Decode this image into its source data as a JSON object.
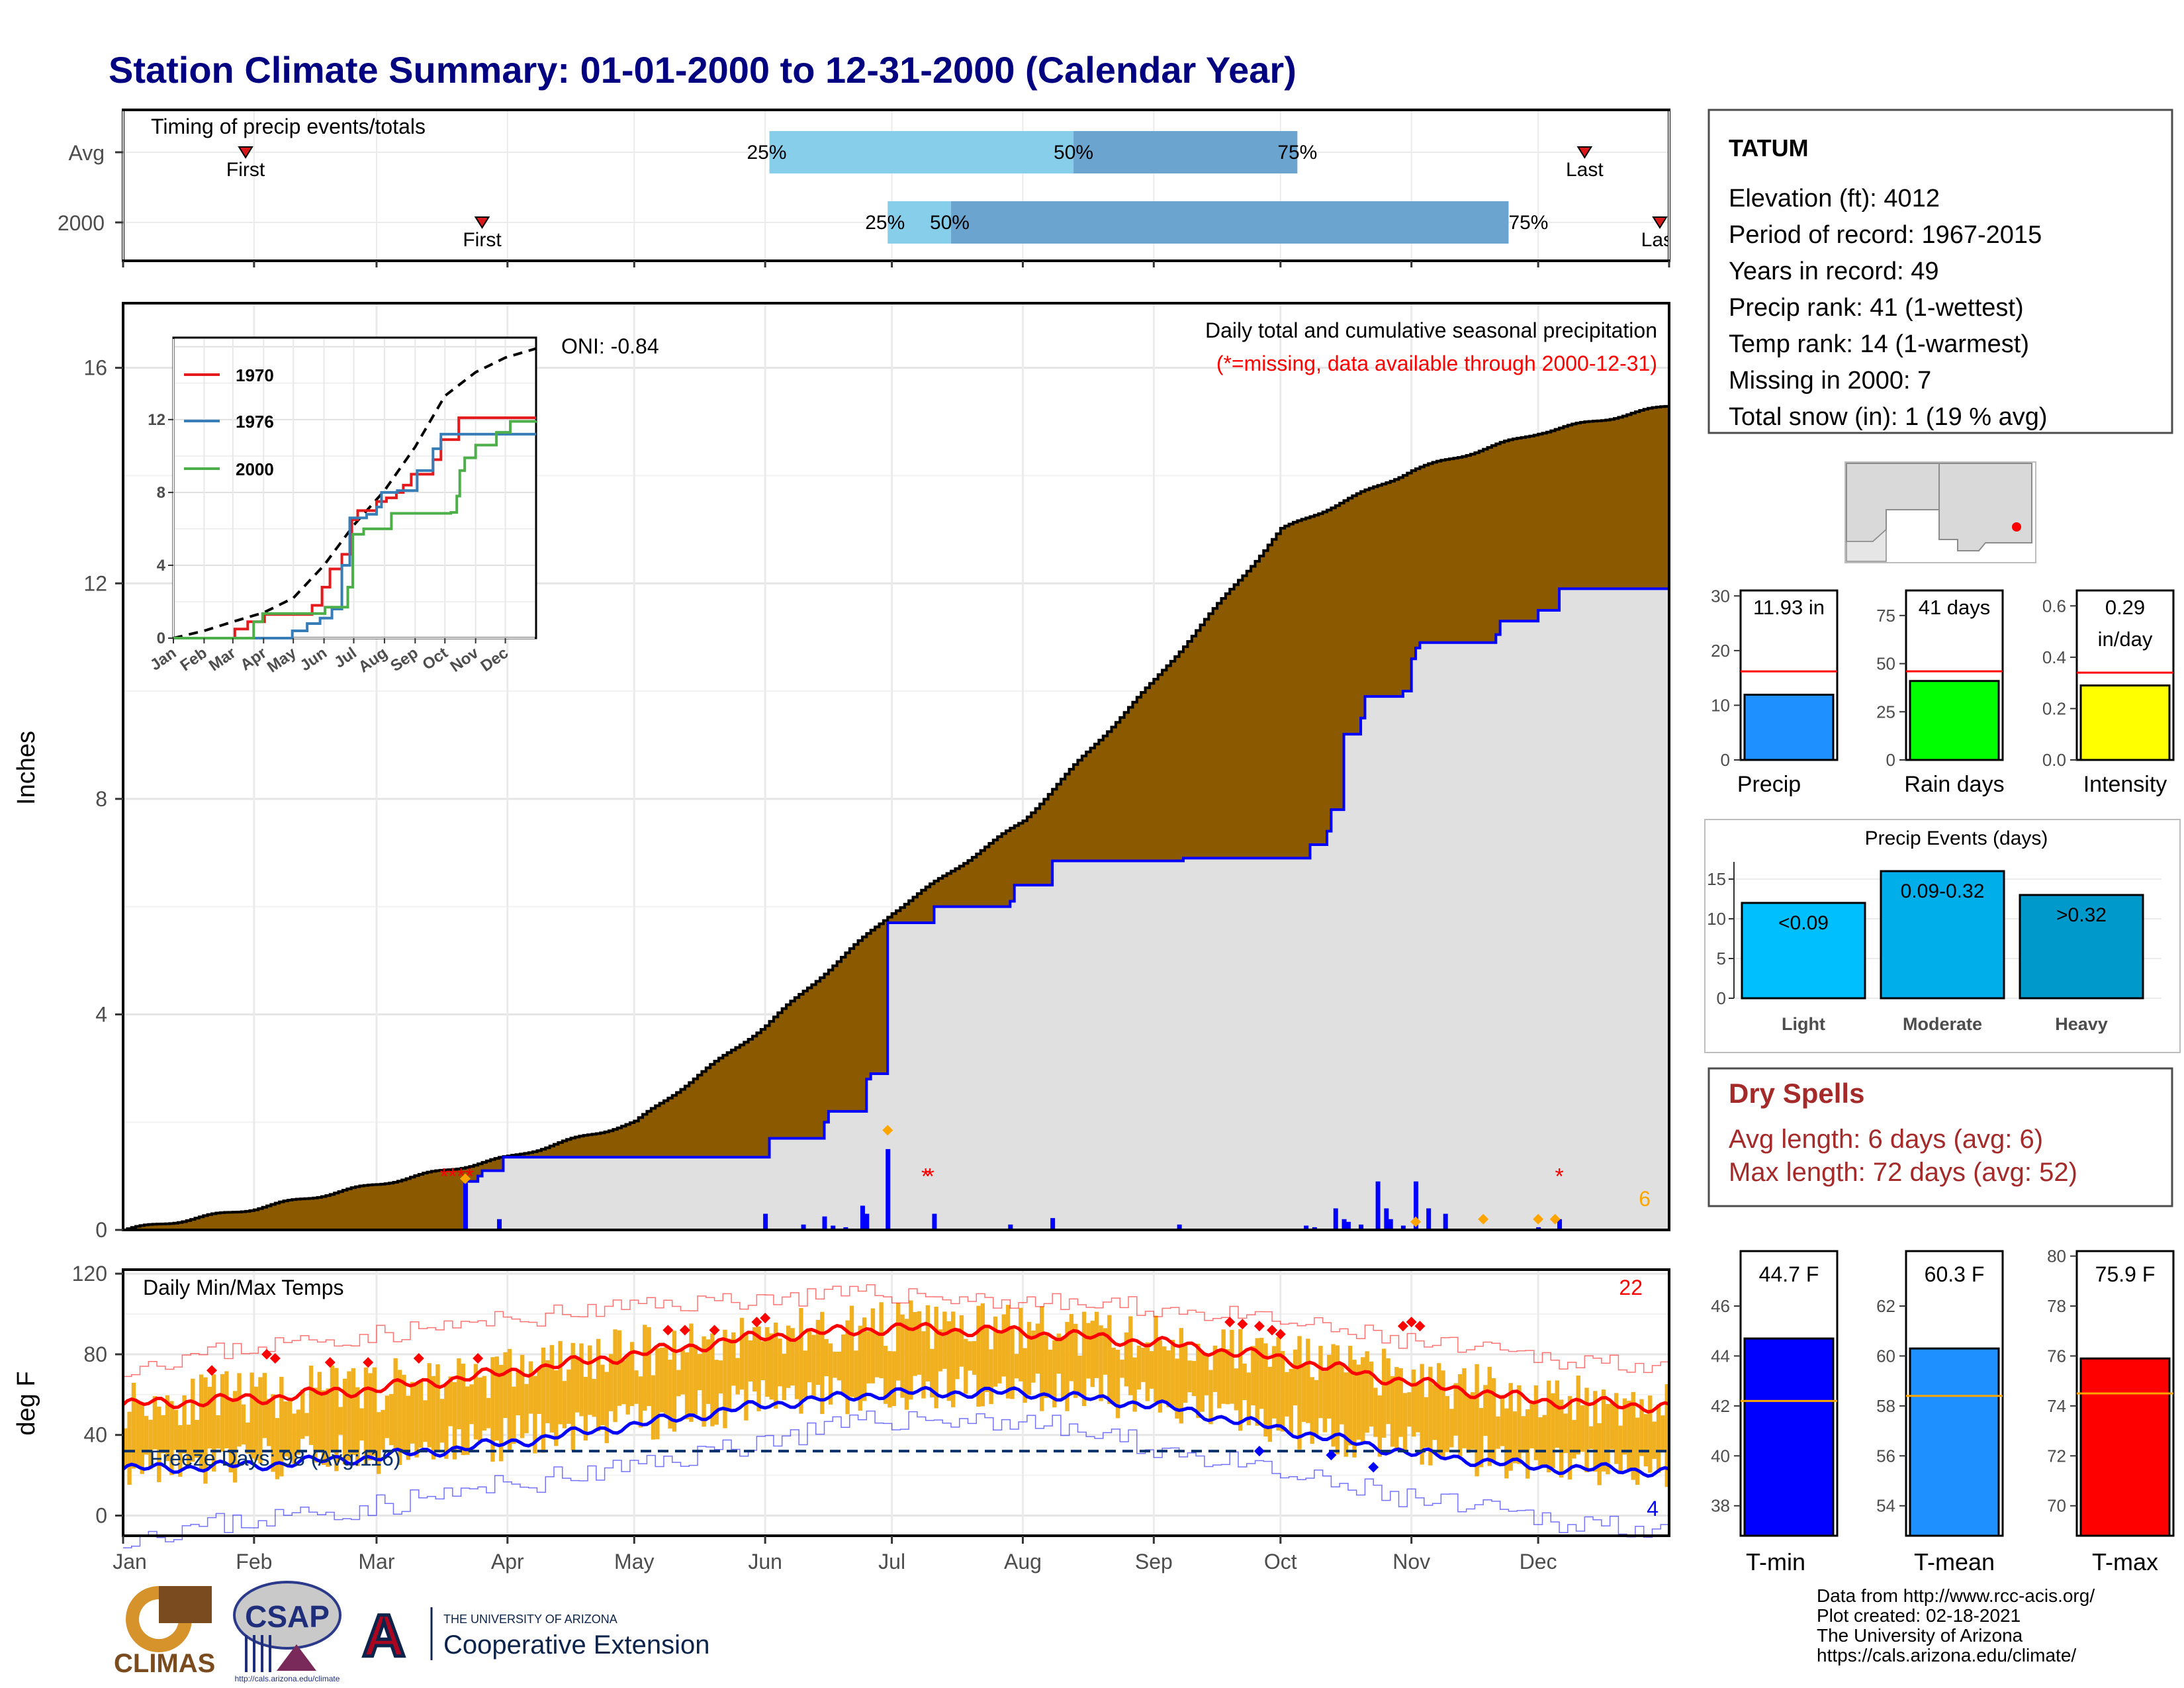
{
  "title": "Station Climate Summary: 01-01-2000 to 12-31-2000 (Calendar Year)",
  "colors": {
    "title": "#000080",
    "precip_fill": "#8B5A00",
    "avg_fill": "#e0e0e0",
    "daily_bar": "#0000ff",
    "timing_light": "#87ceeb",
    "timing_dark": "#6ba5cf",
    "tmax": "#ff0000",
    "tmin": "#0000ff",
    "temp_bar": "#f0b020",
    "dry": "#a52a2a",
    "missing": "#ff0000",
    "extreme": "#ffa500"
  },
  "months": [
    "Jan",
    "Feb",
    "Mar",
    "Apr",
    "May",
    "Jun",
    "Jul",
    "Aug",
    "Sep",
    "Oct",
    "Nov",
    "Dec"
  ],
  "timing": {
    "title": "Timing of precip events/totals",
    "rows": [
      {
        "label": "Avg",
        "first_doy": 29,
        "first": "First",
        "p25": 153,
        "p50": 225,
        "p75": 278,
        "last_doy": 346,
        "last": "Last",
        "p25_text": "25%",
        "p50_text": "50%",
        "p75_text": "75%"
      },
      {
        "label": "2000",
        "first_doy": 85,
        "first": "First",
        "p25": 181,
        "p50": 196,
        "p75": 328,
        "last_doy": 366,
        "last": "Last",
        "p25_text": "25%",
        "p50_text": "50%",
        "p75_text": "75%"
      }
    ]
  },
  "precip_panel": {
    "ylabel": "Inches",
    "yticks": [
      0,
      4,
      8,
      12,
      16
    ],
    "ylim": [
      0,
      17.2
    ],
    "title": "Daily total and cumulative seasonal precipitation",
    "missing_note": "(*=missing, data available through 2000-12-31)",
    "oni": "ONI: -0.84",
    "corner_count": "6",
    "inset": {
      "yticks": [
        0,
        4,
        8,
        12
      ],
      "xticks": [
        "Jan",
        "Feb",
        "Mar",
        "Apr",
        "May",
        "Jun",
        "Jul",
        "Aug",
        "Sep",
        "Oct",
        "Nov",
        "Dec"
      ],
      "legend": [
        "1970",
        "1976",
        "2000"
      ]
    }
  },
  "chart_data": [
    {
      "type": "area",
      "title": "Daily total and cumulative seasonal precipitation",
      "ylabel": "Inches",
      "x_unit": "day of year",
      "series": [
        {
          "name": "Avg cumulative precip",
          "points": [
            [
              0,
              0
            ],
            [
              31,
              0.4
            ],
            [
              60,
              0.85
            ],
            [
              91,
              1.35
            ],
            [
              121,
              2.0
            ],
            [
              152,
              3.8
            ],
            [
              182,
              5.9
            ],
            [
              213,
              7.6
            ],
            [
              244,
              10.2
            ],
            [
              274,
              13.0
            ],
            [
              305,
              14.1
            ],
            [
              335,
              14.8
            ],
            [
              366,
              15.3
            ]
          ]
        },
        {
          "name": "2000 cumulative precip",
          "points": [
            [
              0,
              0
            ],
            [
              80,
              0
            ],
            [
              81,
              0.9
            ],
            [
              84,
              1.0
            ],
            [
              85,
              1.1
            ],
            [
              90,
              1.35
            ],
            [
              152,
              1.35
            ],
            [
              153,
              1.7
            ],
            [
              165,
              1.7
            ],
            [
              166,
              2.0
            ],
            [
              167,
              2.2
            ],
            [
              175,
              2.2
            ],
            [
              176,
              2.8
            ],
            [
              177,
              2.9
            ],
            [
              180,
              2.9
            ],
            [
              181,
              5.7
            ],
            [
              191,
              5.7
            ],
            [
              192,
              6.0
            ],
            [
              210,
              6.1
            ],
            [
              211,
              6.4
            ],
            [
              219,
              6.4
            ],
            [
              220,
              6.85
            ],
            [
              250,
              6.85
            ],
            [
              251,
              6.9
            ],
            [
              280,
              6.9
            ],
            [
              281,
              7.15
            ],
            [
              285,
              7.4
            ],
            [
              286,
              7.8
            ],
            [
              289,
              9.2
            ],
            [
              293,
              9.5
            ],
            [
              294,
              9.9
            ],
            [
              303,
              10.0
            ],
            [
              305,
              10.6
            ],
            [
              306,
              10.8
            ],
            [
              307,
              10.9
            ],
            [
              325,
              11.05
            ],
            [
              326,
              11.3
            ],
            [
              335,
              11.5
            ],
            [
              340,
              11.9
            ],
            [
              366,
              11.93
            ]
          ]
        }
      ],
      "daily_bars": [
        [
          81,
          0.87
        ],
        [
          89,
          0.2
        ],
        [
          152,
          0.3
        ],
        [
          161,
          0.1
        ],
        [
          166,
          0.25
        ],
        [
          168,
          0.08
        ],
        [
          171,
          0.05
        ],
        [
          175,
          0.45
        ],
        [
          176,
          0.3
        ],
        [
          181,
          1.5
        ],
        [
          192,
          0.3
        ],
        [
          210,
          0.1
        ],
        [
          220,
          0.22
        ],
        [
          250,
          0.1
        ],
        [
          280,
          0.08
        ],
        [
          282,
          0.05
        ],
        [
          287,
          0.4
        ],
        [
          289,
          0.2
        ],
        [
          290,
          0.15
        ],
        [
          293,
          0.1
        ],
        [
          297,
          0.9
        ],
        [
          299,
          0.4
        ],
        [
          300,
          0.2
        ],
        [
          303,
          0.08
        ],
        [
          306,
          0.9
        ],
        [
          309,
          0.4
        ],
        [
          313,
          0.3
        ],
        [
          335,
          0.05
        ],
        [
          340,
          0.2
        ]
      ]
    },
    {
      "type": "line",
      "title": "Daily Min/Max Temps",
      "ylabel": "deg F",
      "yticks": [
        0,
        40,
        80,
        120
      ],
      "ylim": [
        -10,
        122
      ],
      "series": [
        {
          "name": "Normal Tmax",
          "points": [
            [
              0,
              55
            ],
            [
              31,
              58
            ],
            [
              60,
              63
            ],
            [
              91,
              71
            ],
            [
              121,
              80
            ],
            [
              152,
              89
            ],
            [
              182,
              93
            ],
            [
              213,
              91
            ],
            [
              244,
              86
            ],
            [
              274,
              78
            ],
            [
              305,
              66
            ],
            [
              335,
              57
            ],
            [
              366,
              54
            ]
          ]
        },
        {
          "name": "Normal Tmin",
          "points": [
            [
              0,
              23
            ],
            [
              31,
              25
            ],
            [
              60,
              29
            ],
            [
              91,
              36
            ],
            [
              121,
              45
            ],
            [
              152,
              55
            ],
            [
              182,
              61
            ],
            [
              213,
              61
            ],
            [
              244,
              55
            ],
            [
              274,
              43
            ],
            [
              305,
              31
            ],
            [
              335,
              24
            ],
            [
              366,
              22
            ]
          ]
        },
        {
          "name": "Record Tmax",
          "points": [
            [
              0,
              74
            ],
            [
              31,
              84
            ],
            [
              60,
              90
            ],
            [
              91,
              97
            ],
            [
              121,
              104
            ],
            [
              152,
              108
            ],
            [
              182,
              110
            ],
            [
              213,
              106
            ],
            [
              244,
              103
            ],
            [
              274,
              96
            ],
            [
              305,
              86
            ],
            [
              335,
              78
            ],
            [
              366,
              75
            ]
          ]
        },
        {
          "name": "Record Tmin",
          "points": [
            [
              0,
              -10
            ],
            [
              31,
              -2
            ],
            [
              60,
              5
            ],
            [
              91,
              15
            ],
            [
              121,
              24
            ],
            [
              152,
              38
            ],
            [
              182,
              48
            ],
            [
              213,
              47
            ],
            [
              244,
              34
            ],
            [
              274,
              20
            ],
            [
              305,
              8
            ],
            [
              335,
              -2
            ],
            [
              366,
              -6
            ]
          ]
        }
      ]
    },
    {
      "type": "bar",
      "title": "Precip",
      "value": 11.93,
      "normal": 16.2,
      "yticks": [
        0,
        10,
        20,
        30
      ],
      "ylim": [
        0,
        31
      ]
    },
    {
      "type": "bar",
      "title": "Rain days",
      "value": 41,
      "normal": 46,
      "yticks": [
        0,
        25,
        50,
        75
      ],
      "ylim": [
        0,
        88
      ]
    },
    {
      "type": "bar",
      "title": "Intensity",
      "value": 0.29,
      "normal": 0.34,
      "yticks": [
        0.0,
        0.2,
        0.4,
        0.6
      ],
      "ylim": [
        0,
        0.66
      ]
    },
    {
      "type": "bar",
      "title": "Precip Events (days)",
      "categories": [
        "Light",
        "Moderate",
        "Heavy"
      ],
      "values": [
        12,
        16,
        13
      ],
      "yticks": [
        0,
        5,
        10,
        15
      ],
      "ylim": [
        0,
        16.5
      ]
    },
    {
      "type": "bar",
      "title": "T-min",
      "value": 44.7,
      "normal": 42.2,
      "yticks": [
        38,
        40,
        42,
        44,
        46
      ],
      "ylim": [
        36.8,
        48.2
      ]
    },
    {
      "type": "bar",
      "title": "T-mean",
      "value": 60.3,
      "normal": 58.4,
      "yticks": [
        54,
        56,
        58,
        60,
        62
      ],
      "ylim": [
        52.8,
        64.2
      ]
    },
    {
      "type": "bar",
      "title": "T-max",
      "value": 75.9,
      "normal": 74.5,
      "yticks": [
        70,
        72,
        74,
        76,
        78,
        80
      ],
      "ylim": [
        68.8,
        80.2
      ]
    }
  ],
  "temp_panel": {
    "title": "Daily Min/Max Temps",
    "ylabel": "deg F",
    "freeze": "Freeze Days: 98 (Avg:116)",
    "hot_count": "22",
    "cold_count": "4"
  },
  "station": {
    "name": "TATUM",
    "lines": [
      "Elevation (ft): 4012",
      "Period of record: 1967-2015",
      "Years in record: 49",
      "Precip rank: 41 (1-wettest)",
      "Temp rank: 14 (1-warmest)",
      "Missing in 2000: 7",
      "Total snow (in): 1 (19 % avg)"
    ]
  },
  "bars_precip": {
    "precip": {
      "label": "11.93 in",
      "xlabel": "Precip",
      "color": "#1e90ff"
    },
    "raindays": {
      "label": "41 days",
      "xlabel": "Rain days",
      "color": "#00ff00"
    },
    "intensity": {
      "label1": "0.29",
      "label2": "in/day",
      "xlabel": "Intensity",
      "color": "#ffff00"
    }
  },
  "events": {
    "title": "Precip Events (days)",
    "labels": [
      "<0.09",
      "0.09-0.32",
      ">0.32"
    ],
    "colors": [
      "#00bfff",
      "#00aeea",
      "#0099cc"
    ]
  },
  "dry": {
    "title": "Dry Spells",
    "avg": "Avg length: 6 days (avg: 6)",
    "max": "Max length: 72 days (avg: 52)"
  },
  "temps": {
    "tmin": {
      "label": "44.7 F",
      "xlabel": "T-min",
      "color": "#0000ff"
    },
    "tmean": {
      "label": "60.3 F",
      "xlabel": "T-mean",
      "color": "#1e90ff"
    },
    "tmax": {
      "label": "75.9 F",
      "xlabel": "T-max",
      "color": "#ff0000"
    }
  },
  "footer": {
    "lines": [
      "Data from http://www.rcc-acis.org/",
      "Plot created: 02-18-2021",
      "The University of Arizona",
      "https://cals.arizona.edu/climate/"
    ],
    "climas": "CLIMAS",
    "csap": "CSAP",
    "csap_url": "http://cals.arizona.edu/climate",
    "ua_small": "THE UNIVERSITY OF ARIZONA",
    "ua_big": "Cooperative Extension",
    "ua_letter": "A"
  }
}
